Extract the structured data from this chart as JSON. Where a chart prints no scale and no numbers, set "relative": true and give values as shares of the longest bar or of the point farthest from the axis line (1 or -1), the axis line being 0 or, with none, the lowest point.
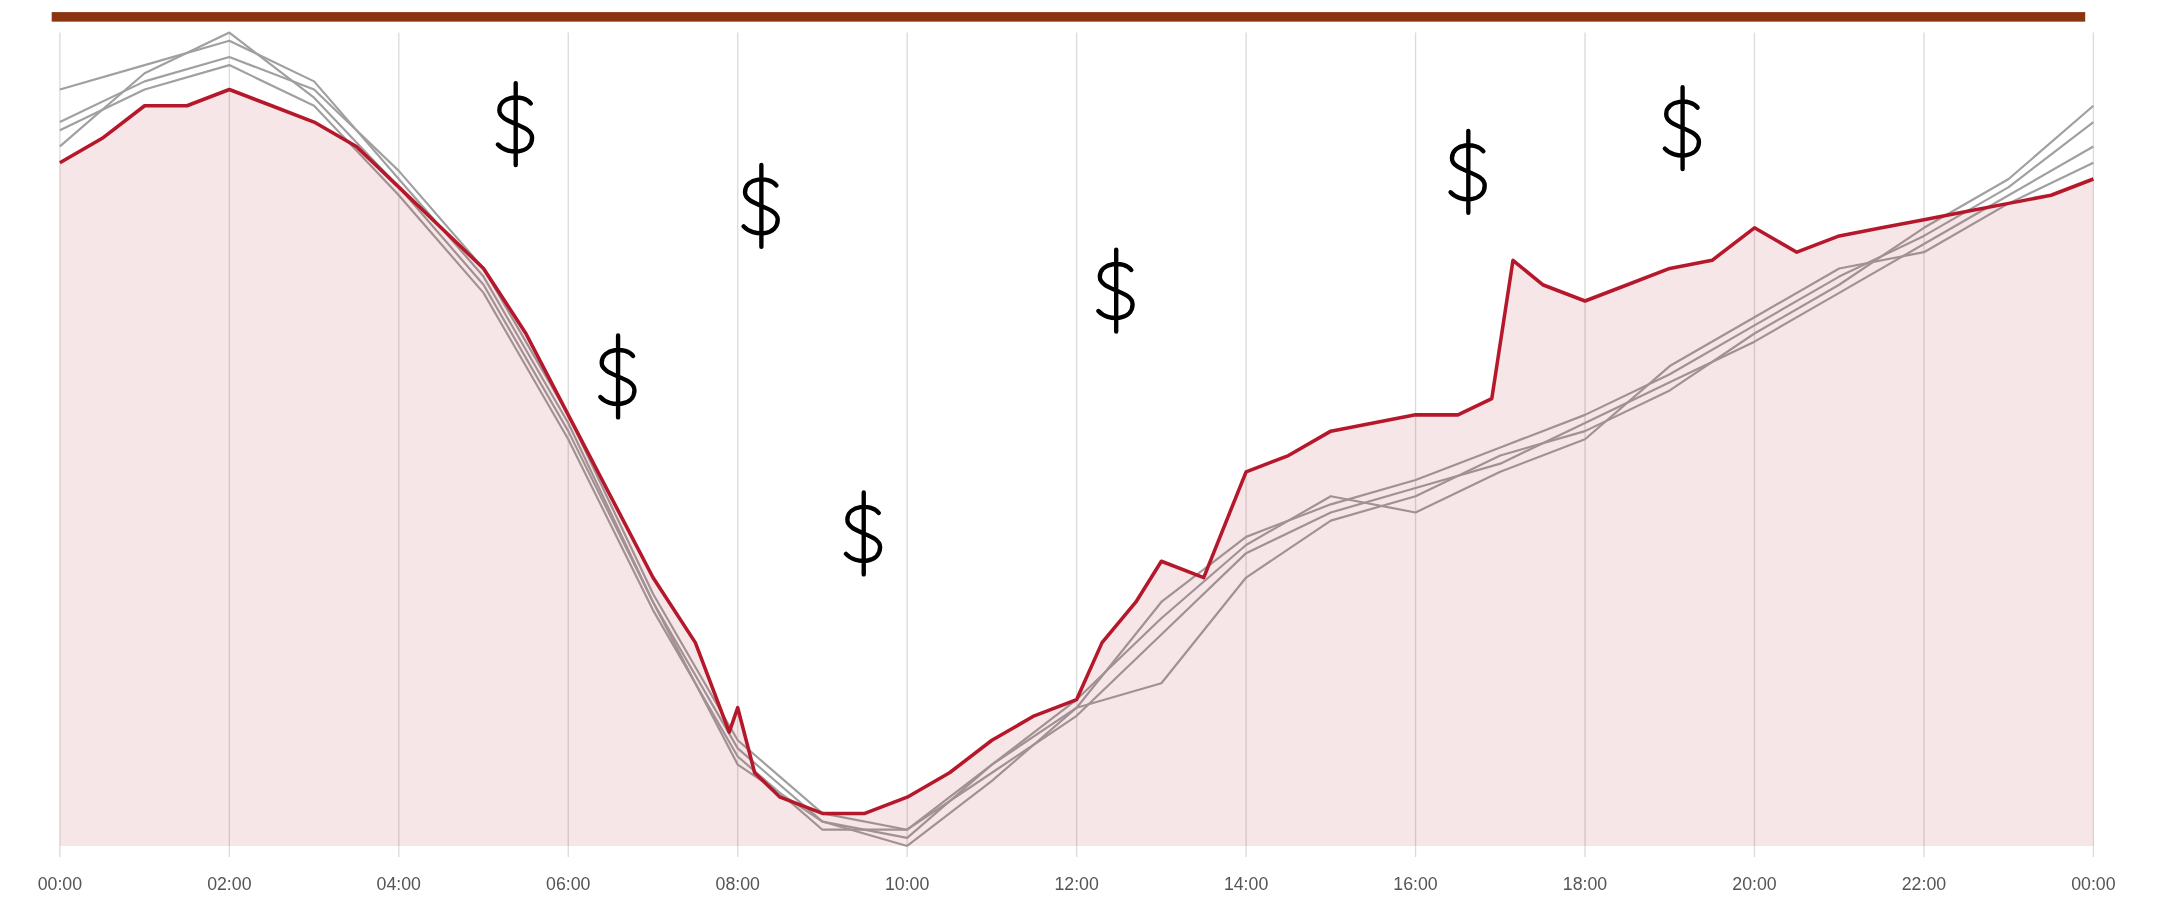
{
  "chart_data": {
    "type": "line",
    "relative": true,
    "grid": "x",
    "xlim": [
      0,
      24
    ],
    "xticks": [
      {
        "value": 0,
        "label": "00:00"
      },
      {
        "value": 2,
        "label": "02:00"
      },
      {
        "value": 4,
        "label": "04:00"
      },
      {
        "value": 6,
        "label": "06:00"
      },
      {
        "value": 8,
        "label": "08:00"
      },
      {
        "value": 10,
        "label": "10:00"
      },
      {
        "value": 12,
        "label": "12:00"
      },
      {
        "value": 14,
        "label": "14:00"
      },
      {
        "value": 16,
        "label": "16:00"
      },
      {
        "value": 18,
        "label": "18:00"
      },
      {
        "value": 20,
        "label": "20:00"
      },
      {
        "value": 22,
        "label": "22:00"
      },
      {
        "value": 24,
        "label": "00:00"
      }
    ],
    "series": [
      {
        "color": "#a0a0a0",
        "x": [
          0,
          1,
          2,
          3,
          4,
          5,
          6,
          7,
          8,
          9,
          10,
          11,
          12,
          13,
          14,
          15,
          16,
          17,
          18,
          19,
          20,
          21,
          22,
          23,
          24
        ],
        "values": [
          0.93,
          0.96,
          0.99,
          0.94,
          0.82,
          0.7,
          0.52,
          0.3,
          0.12,
          0.03,
          0.01,
          0.1,
          0.17,
          0.3,
          0.38,
          0.42,
          0.45,
          0.49,
          0.53,
          0.58,
          0.64,
          0.7,
          0.75,
          0.81,
          0.89
        ]
      },
      {
        "color": "#a0a0a0",
        "x": [
          0,
          1,
          2,
          3,
          4,
          5,
          6,
          7,
          8,
          9,
          10,
          11,
          12,
          13,
          14,
          15,
          16,
          17,
          18,
          19,
          20,
          21,
          22,
          23,
          24
        ],
        "values": [
          0.88,
          0.93,
          0.96,
          0.91,
          0.8,
          0.68,
          0.5,
          0.29,
          0.11,
          0.02,
          0.02,
          0.09,
          0.16,
          0.26,
          0.36,
          0.41,
          0.44,
          0.47,
          0.52,
          0.57,
          0.62,
          0.68,
          0.74,
          0.8,
          0.86
        ]
      },
      {
        "color": "#a0a0a0",
        "x": [
          0,
          1,
          2,
          3,
          4,
          5,
          6,
          7,
          8,
          9,
          10,
          11,
          12,
          13,
          14,
          15,
          16,
          17,
          18,
          19,
          20,
          21,
          22,
          23,
          24
        ],
        "values": [
          0.86,
          0.95,
          1.0,
          0.92,
          0.81,
          0.69,
          0.51,
          0.3,
          0.1,
          0.03,
          0.0,
          0.08,
          0.17,
          0.2,
          0.33,
          0.4,
          0.43,
          0.48,
          0.51,
          0.56,
          0.63,
          0.69,
          0.76,
          0.82,
          0.91
        ]
      },
      {
        "color": "#a0a0a0",
        "x": [
          0,
          1,
          2,
          3,
          4,
          5,
          6,
          7,
          8,
          9,
          10,
          11,
          12,
          13,
          14,
          15,
          16,
          17,
          18,
          19,
          20,
          21,
          22,
          23,
          24
        ],
        "values": [
          0.89,
          0.94,
          0.97,
          0.93,
          0.83,
          0.71,
          0.53,
          0.31,
          0.13,
          0.04,
          0.02,
          0.1,
          0.18,
          0.28,
          0.37,
          0.43,
          0.41,
          0.46,
          0.5,
          0.59,
          0.65,
          0.71,
          0.73,
          0.79,
          0.84
        ]
      },
      {
        "type": "area",
        "color": "#b5182b",
        "x": [
          0,
          0.5,
          1,
          1.5,
          2,
          2.5,
          3,
          3.5,
          4,
          4.5,
          5,
          5.5,
          6,
          6.5,
          7,
          7.5,
          7.9,
          8,
          8.2,
          8.5,
          9,
          9.5,
          10,
          10.5,
          11,
          11.5,
          12,
          12.3,
          12.7,
          13,
          13.5,
          14,
          14.5,
          15,
          15.5,
          16,
          16.5,
          16.9,
          17.15,
          17.5,
          18,
          18.5,
          19,
          19.5,
          20,
          20.5,
          21,
          21.5,
          22,
          22.5,
          23,
          23.5,
          24
        ],
        "values": [
          0.84,
          0.87,
          0.91,
          0.91,
          0.93,
          0.91,
          0.89,
          0.86,
          0.81,
          0.76,
          0.71,
          0.63,
          0.53,
          0.43,
          0.33,
          0.25,
          0.14,
          0.17,
          0.09,
          0.06,
          0.04,
          0.04,
          0.06,
          0.09,
          0.13,
          0.16,
          0.18,
          0.25,
          0.3,
          0.35,
          0.33,
          0.46,
          0.48,
          0.51,
          0.52,
          0.53,
          0.53,
          0.55,
          0.72,
          0.69,
          0.67,
          0.69,
          0.71,
          0.72,
          0.76,
          0.73,
          0.75,
          0.76,
          0.77,
          0.78,
          0.79,
          0.8,
          0.82
        ]
      }
    ]
  }
}
